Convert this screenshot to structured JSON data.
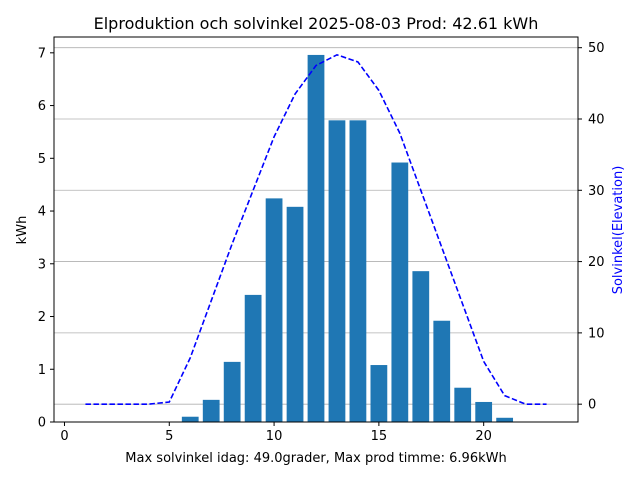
{
  "chart_data": {
    "type": "bar",
    "title": "Elproduktion och solvinkel 2025-08-03 Prod: 42.61 kWh",
    "xlabel": "Max solvinkel idag: 49.0grader, Max prod timme: 6.96kWh",
    "ylabel": "kWh",
    "y2label": "Solvinkel(Elevation)",
    "xlim": [
      -0.5,
      24.5
    ],
    "ylim": [
      0,
      7.3
    ],
    "y2lim": [
      -2.5,
      51.5
    ],
    "xticks": [
      0,
      5,
      10,
      15,
      20
    ],
    "yticks": [
      0,
      1,
      2,
      3,
      4,
      5,
      6,
      7
    ],
    "y2ticks": [
      0,
      10,
      20,
      30,
      40,
      50
    ],
    "grid": true,
    "bar_color": "#1f77b4",
    "line_color": "#0000ff",
    "bars": {
      "name": "kWh",
      "x": [
        6,
        7,
        8,
        9,
        10,
        11,
        12,
        13,
        14,
        15,
        16,
        17,
        18,
        19,
        20,
        21
      ],
      "values": [
        0.1,
        0.42,
        1.14,
        2.41,
        4.24,
        4.08,
        6.96,
        5.72,
        5.72,
        1.08,
        4.92,
        2.86,
        1.92,
        0.65,
        0.38,
        0.08
      ]
    },
    "line": {
      "name": "Solvinkel",
      "style": "dashed",
      "x": [
        1,
        2,
        3,
        4,
        5,
        6,
        7,
        8,
        9,
        10,
        11,
        12,
        13,
        14,
        15,
        16,
        17,
        18,
        19,
        20,
        21,
        22,
        23
      ],
      "values": [
        0,
        0,
        0,
        0,
        0.3,
        6.5,
        14.5,
        22.5,
        30,
        37.5,
        43.5,
        47.5,
        49,
        48,
        44,
        38,
        30,
        22,
        14,
        6,
        1.2,
        0,
        0
      ]
    }
  }
}
